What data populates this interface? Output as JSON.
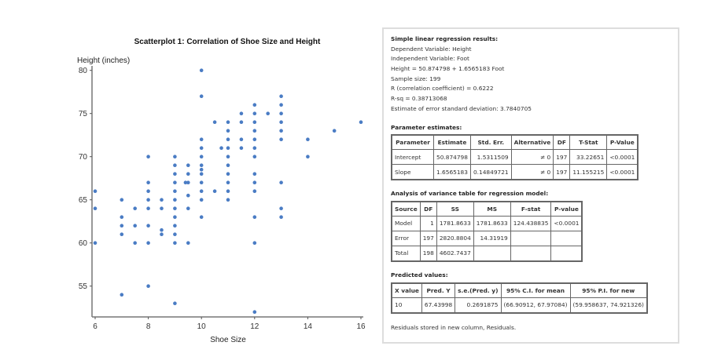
{
  "chart_data": {
    "type": "scatter",
    "title": "Scatterplot 1: Correlation of Shoe Size and Height",
    "xlabel": "Shoe Size",
    "ylabel": "Height (inches)",
    "xlim": [
      5.9,
      16
    ],
    "ylim": [
      51.5,
      80.5
    ],
    "xticks": [
      6,
      8,
      10,
      12,
      14,
      16
    ],
    "yticks": [
      55,
      60,
      65,
      70,
      75,
      80
    ],
    "grid": false,
    "color": "#4a7cc4",
    "points": [
      [
        6,
        66
      ],
      [
        6,
        64
      ],
      [
        6,
        60
      ],
      [
        7,
        65
      ],
      [
        7,
        63
      ],
      [
        7,
        62
      ],
      [
        7,
        61
      ],
      [
        7,
        54
      ],
      [
        7.5,
        64
      ],
      [
        7.5,
        62
      ],
      [
        7.5,
        60
      ],
      [
        8,
        70
      ],
      [
        8,
        67
      ],
      [
        8,
        66
      ],
      [
        8,
        65
      ],
      [
        8,
        64
      ],
      [
        8,
        62
      ],
      [
        8,
        60
      ],
      [
        8,
        55
      ],
      [
        8.5,
        65
      ],
      [
        8.5,
        64
      ],
      [
        8.5,
        61.5
      ],
      [
        8.5,
        61
      ],
      [
        9,
        70
      ],
      [
        9,
        69
      ],
      [
        9,
        68
      ],
      [
        9,
        67
      ],
      [
        9,
        66
      ],
      [
        9,
        65
      ],
      [
        9,
        64
      ],
      [
        9,
        63
      ],
      [
        9,
        62
      ],
      [
        9,
        61
      ],
      [
        9,
        60
      ],
      [
        9,
        53
      ],
      [
        9.4,
        67
      ],
      [
        9.5,
        69
      ],
      [
        9.5,
        68
      ],
      [
        9.5,
        67
      ],
      [
        9.5,
        65.5
      ],
      [
        9.5,
        64
      ],
      [
        9.5,
        60
      ],
      [
        10,
        80
      ],
      [
        10,
        77
      ],
      [
        10,
        72
      ],
      [
        10,
        71
      ],
      [
        10,
        70
      ],
      [
        10,
        69
      ],
      [
        10,
        68.5
      ],
      [
        10,
        68
      ],
      [
        10,
        67
      ],
      [
        10,
        66
      ],
      [
        10,
        65
      ],
      [
        10,
        63
      ],
      [
        10.5,
        74
      ],
      [
        10.5,
        66
      ],
      [
        10.75,
        71
      ],
      [
        11,
        74
      ],
      [
        11,
        73
      ],
      [
        11,
        72
      ],
      [
        11,
        71
      ],
      [
        11,
        70
      ],
      [
        11,
        69
      ],
      [
        11,
        68
      ],
      [
        11,
        67
      ],
      [
        11,
        66
      ],
      [
        11,
        65
      ],
      [
        11.5,
        75
      ],
      [
        11.5,
        74
      ],
      [
        11.5,
        72
      ],
      [
        11.5,
        71
      ],
      [
        12,
        76
      ],
      [
        12,
        75
      ],
      [
        12,
        74
      ],
      [
        12,
        73
      ],
      [
        12,
        72
      ],
      [
        12,
        71
      ],
      [
        12,
        70
      ],
      [
        12,
        68
      ],
      [
        12,
        67
      ],
      [
        12,
        66
      ],
      [
        12,
        63
      ],
      [
        12,
        60
      ],
      [
        12,
        52
      ],
      [
        12.5,
        75
      ],
      [
        13,
        77
      ],
      [
        13,
        76
      ],
      [
        13,
        75
      ],
      [
        13,
        74
      ],
      [
        13,
        73
      ],
      [
        13,
        72
      ],
      [
        13,
        67
      ],
      [
        13,
        64
      ],
      [
        13,
        63
      ],
      [
        14,
        72
      ],
      [
        14,
        70
      ],
      [
        15,
        73
      ],
      [
        16,
        74
      ]
    ]
  },
  "results": {
    "title": "Simple linear regression results:",
    "lines": [
      "Dependent Variable: Height",
      "Independent Variable: Foot",
      "Height = 50.874798 + 1.6565183 Foot",
      "Sample size: 199",
      "R (correlation coefficient) = 0.6222",
      "R-sq = 0.38713068",
      "Estimate of error standard deviation: 3.7840705"
    ],
    "param_title": "Parameter estimates:",
    "param_headers": [
      "Parameter",
      "Estimate",
      "Std. Err.",
      "Alternative",
      "DF",
      "T-Stat",
      "P-Value"
    ],
    "param_rows": [
      [
        "Intercept",
        "50.874798",
        "1.5311509",
        "≠ 0",
        "197",
        "33.22651",
        "<0.0001"
      ],
      [
        "Slope",
        "1.6565183",
        "0.14849721",
        "≠ 0",
        "197",
        "11.155215",
        "<0.0001"
      ]
    ],
    "anova_title": "Analysis of variance table for regression model:",
    "anova_headers": [
      "Source",
      "DF",
      "SS",
      "MS",
      "F-stat",
      "P-value"
    ],
    "anova_rows": [
      [
        "Model",
        "1",
        "1781.8633",
        "1781.8633",
        "124.438835",
        "<0.0001"
      ],
      [
        "Error",
        "197",
        "2820.8804",
        "14.31919",
        "",
        ""
      ],
      [
        "Total",
        "198",
        "4602.7437",
        "",
        "",
        ""
      ]
    ],
    "pred_title": "Predicted values:",
    "pred_headers": [
      "X value",
      "Pred. Y",
      "s.e.(Pred. y)",
      "95% C.I. for mean",
      "95% P.I. for new"
    ],
    "pred_rows": [
      [
        "10",
        "67.43998",
        "0.2691875",
        "(66.90912, 67.97084)",
        "(59.958637, 74.921326)"
      ]
    ],
    "footer": "Residuals stored in new column, Residuals."
  }
}
